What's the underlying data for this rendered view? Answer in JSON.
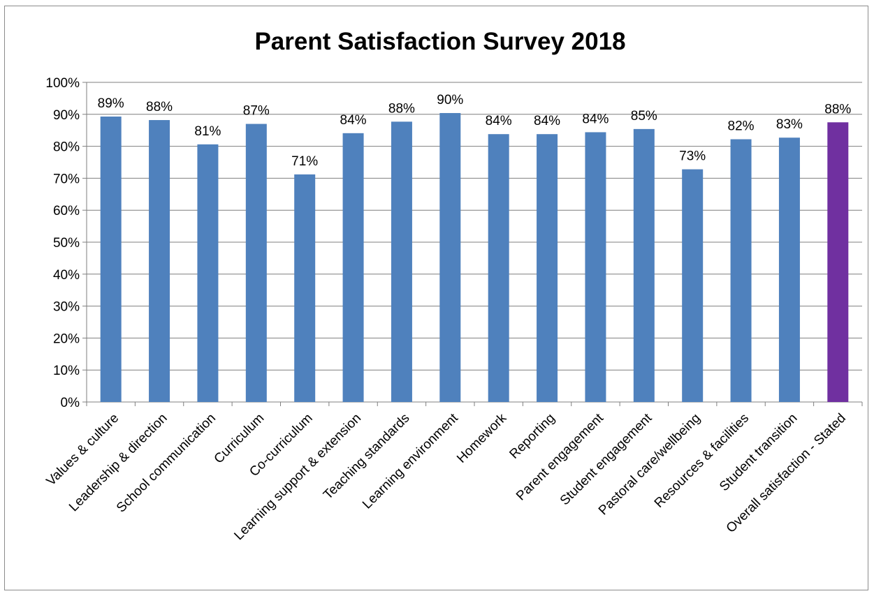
{
  "chart_data": {
    "type": "bar",
    "title": "Parent Satisfaction Survey 2018",
    "xlabel": "",
    "ylabel": "",
    "ylim": [
      0,
      100
    ],
    "y_tick_step": 10,
    "y_tick_format": "percent",
    "grid": true,
    "legend": "none",
    "colors": {
      "default_bar": "#4f81bd",
      "highlight_bar": "#7030a0",
      "grid": "#7f7f7f",
      "axis": "#7f7f7f"
    },
    "categories": [
      "Values & culture",
      "Leadership & direction",
      "School communication",
      "Curriculum",
      "Co-curriculum",
      "Learning support & extension",
      "Teaching standards",
      "Learning environment",
      "Homework",
      "Reporting",
      "Parent engagement",
      "Student engagement",
      "Pastoral care/wellbeing",
      "Resources & facilities",
      "Student transition",
      "Overall satisfaction - Stated"
    ],
    "values": [
      89.3,
      88.2,
      80.6,
      87.0,
      71.2,
      84.1,
      87.7,
      90.4,
      83.8,
      83.8,
      84.4,
      85.4,
      72.8,
      82.2,
      82.7,
      87.5
    ],
    "data_labels": [
      "89%",
      "88%",
      "81%",
      "87%",
      "71%",
      "84%",
      "88%",
      "90%",
      "84%",
      "84%",
      "84%",
      "85%",
      "73%",
      "82%",
      "83%",
      "88%"
    ],
    "highlight_index": 15
  }
}
